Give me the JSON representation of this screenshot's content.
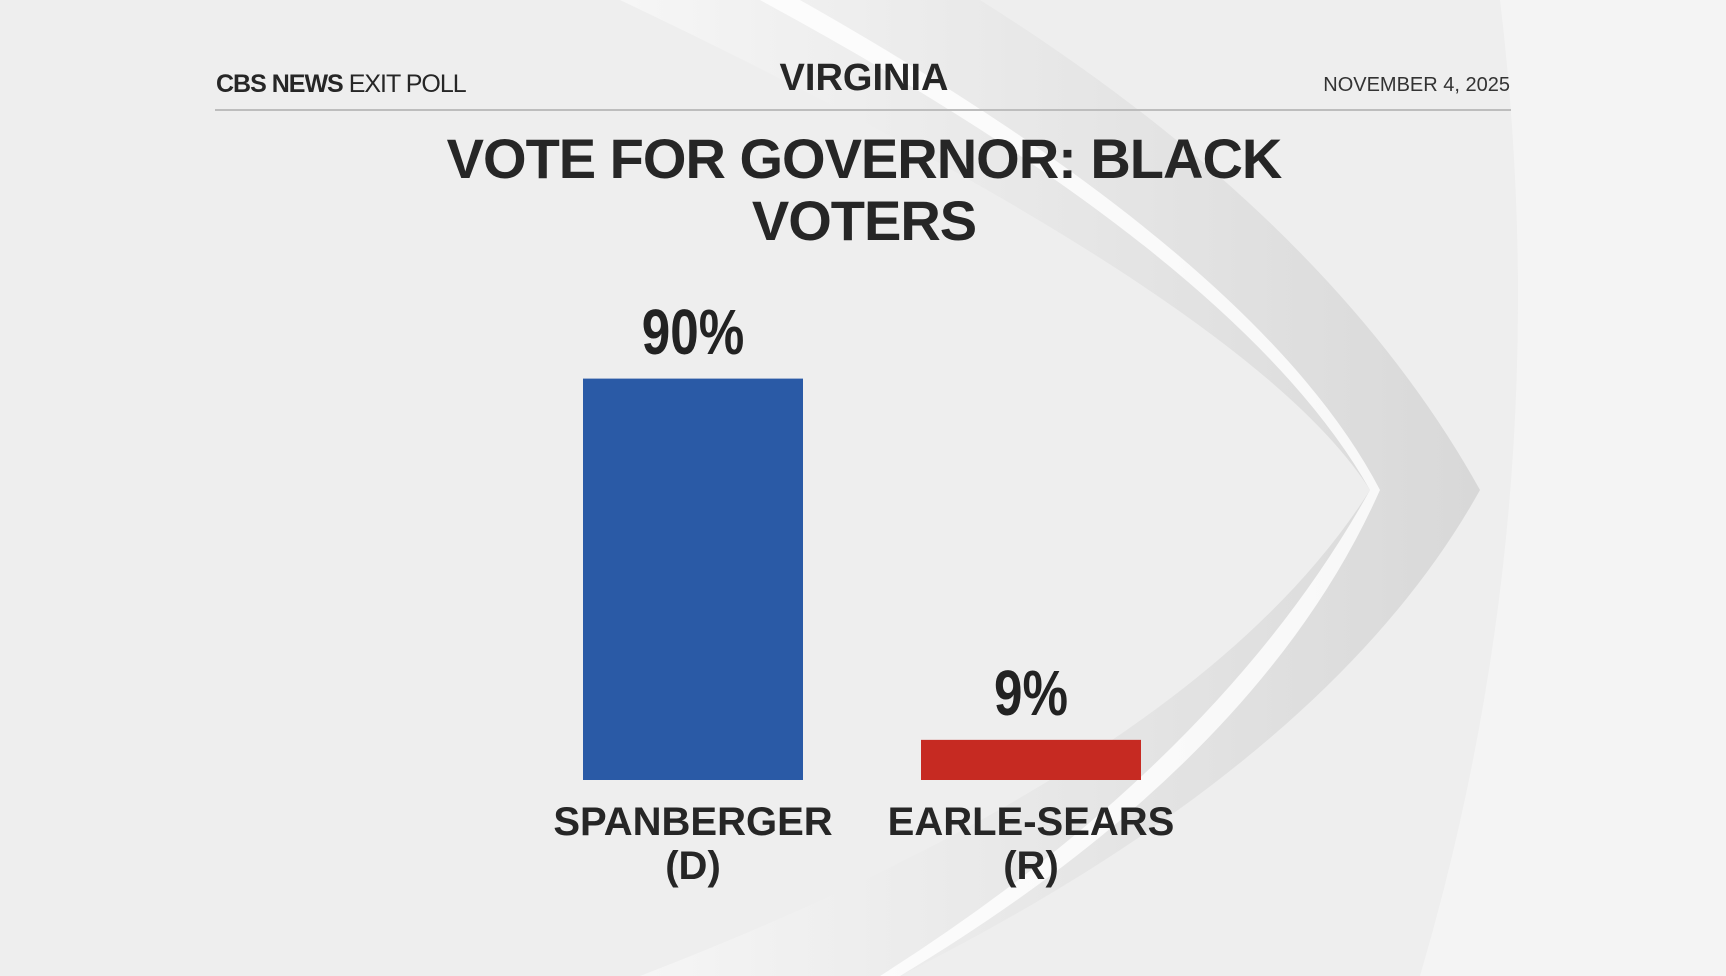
{
  "chart_data": {
    "type": "bar",
    "source": "CBS NEWS",
    "source_detail": "EXIT POLL",
    "subtitle": "VIRGINIA",
    "date": "NOVEMBER 4, 2025",
    "title": "VOTE FOR GOVERNOR: BLACK VOTERS",
    "categories": [
      "SPANBERGER (D)",
      "EARLE-SEARS (R)"
    ],
    "values": [
      90,
      9
    ],
    "value_labels": [
      "90%",
      "9%"
    ],
    "colors": [
      "#2a5aa6",
      "#c62a22"
    ]
  }
}
